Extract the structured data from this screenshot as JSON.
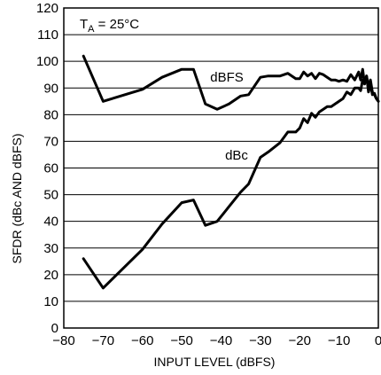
{
  "chart_data": {
    "type": "line",
    "title": "",
    "xlabel": "INPUT LEVEL (dBFS)",
    "ylabel": "SFDR (dBc AND dBFS)",
    "xlim": [
      -80,
      0
    ],
    "ylim": [
      0,
      120
    ],
    "xticks": [
      -80,
      -70,
      -60,
      -50,
      -40,
      -30,
      -20,
      -10,
      0
    ],
    "xtick_labels": [
      "−80",
      "−70",
      "−60",
      "−50",
      "−40",
      "−30",
      "−20",
      "−10",
      "0"
    ],
    "yticks": [
      0,
      10,
      20,
      30,
      40,
      50,
      60,
      70,
      80,
      90,
      100,
      110,
      120
    ],
    "ytick_labels": [
      "0",
      "10",
      "20",
      "30",
      "40",
      "50",
      "60",
      "70",
      "80",
      "90",
      "100",
      "110",
      "120"
    ],
    "grid": "horizontal",
    "annotation": {
      "main": "T",
      "sub": "A",
      "rest": " = 25°C"
    },
    "series": [
      {
        "name": "dBFS",
        "x": [
          -75,
          -70,
          -60,
          -55,
          -50,
          -47,
          -44,
          -41,
          -38,
          -35,
          -33,
          -30,
          -28,
          -25,
          -23,
          -21,
          -20,
          -19,
          -18,
          -17,
          -16,
          -15,
          -14,
          -13,
          -12,
          -11,
          -10,
          -9,
          -8,
          -7,
          -6,
          -5,
          -4.5,
          -4,
          -3.5,
          -3,
          -2.5,
          -2,
          -1.5,
          -1,
          -0.5,
          0
        ],
        "y": [
          102,
          85,
          89.5,
          94,
          97,
          97,
          84,
          82,
          84,
          87,
          87.5,
          94,
          94.5,
          94.5,
          95.5,
          93.5,
          93.5,
          96,
          94.5,
          95.5,
          93.5,
          95.5,
          95,
          94,
          93,
          93,
          92.5,
          93,
          92.5,
          95,
          93,
          96,
          93,
          97,
          91.5,
          94.5,
          90.5,
          93,
          88.5,
          87.5,
          86,
          85
        ]
      },
      {
        "name": "dBc",
        "x": [
          -75,
          -70,
          -60,
          -55,
          -50,
          -47,
          -44,
          -41,
          -38,
          -35,
          -33,
          -30,
          -28,
          -25,
          -23,
          -21,
          -20,
          -19,
          -18,
          -17,
          -16,
          -15,
          -14,
          -13,
          -12,
          -11,
          -10,
          -9,
          -8,
          -7,
          -6,
          -5,
          -4.5,
          -4,
          -3.5,
          -3,
          -2.5,
          -2,
          -1.5,
          -1,
          -0.5,
          0
        ],
        "y": [
          26,
          15,
          29.5,
          39,
          47,
          48,
          38.5,
          40,
          45.5,
          51,
          54,
          64,
          66,
          69.5,
          73.5,
          73.5,
          75,
          78.5,
          77,
          80.5,
          79,
          81,
          82,
          83,
          83,
          84,
          85,
          86,
          88.5,
          87.5,
          90,
          90,
          89,
          93,
          91.5,
          94.5,
          88.5,
          91.5,
          87.5,
          88,
          86,
          85
        ]
      }
    ]
  }
}
